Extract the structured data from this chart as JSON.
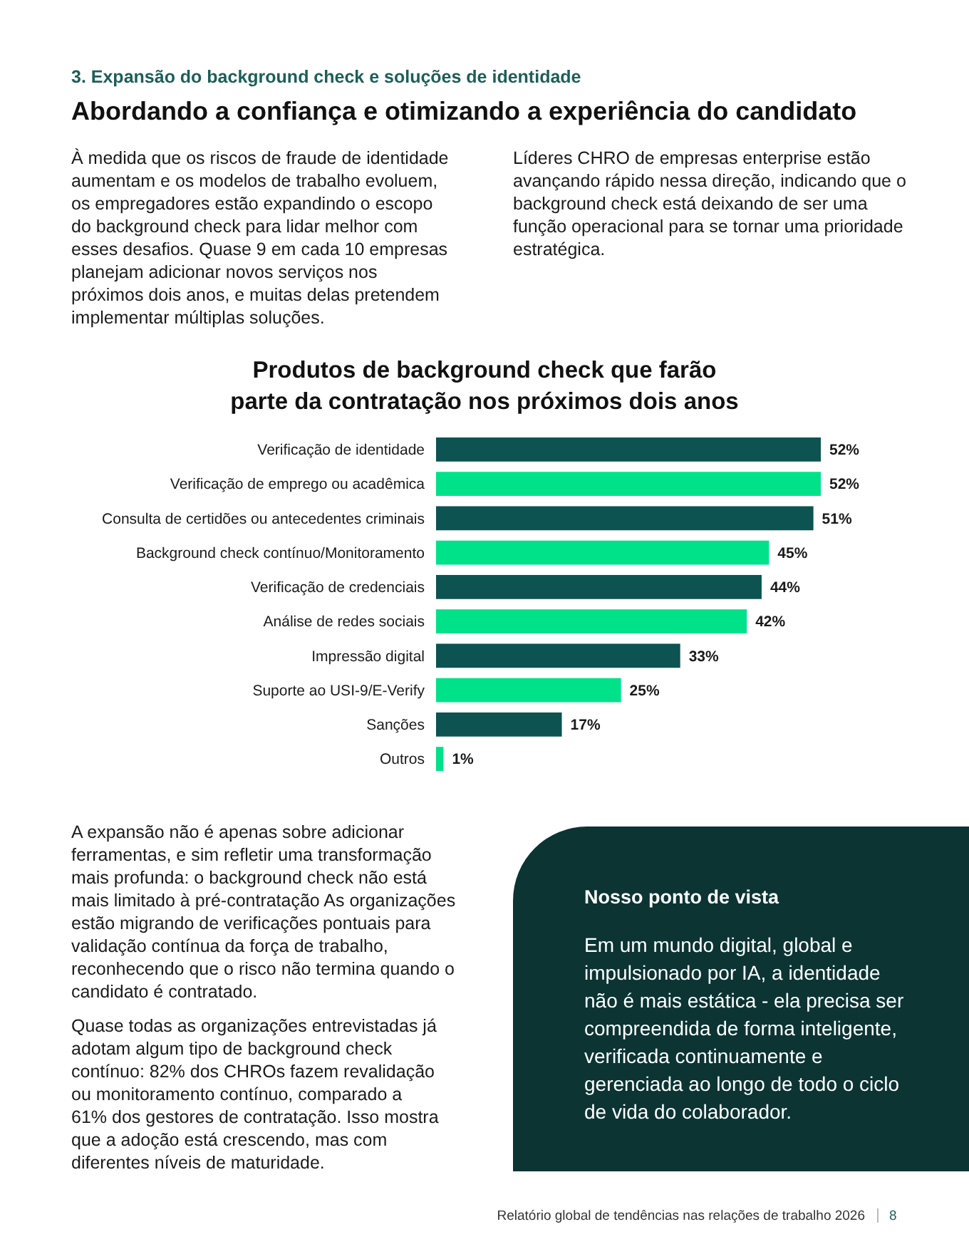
{
  "chart_data": {
    "type": "bar",
    "orientation": "horizontal",
    "title": "Produtos de background check que farão parte da contratação nos próximos dois anos",
    "categories": [
      "Verificação de identidade",
      "Verificação de emprego ou acadêmica",
      "Consulta de certidões ou antecedentes criminais",
      "Background check contínuo/Monitoramento",
      "Verificação de credenciais",
      "Análise de redes sociais",
      "Impressão digital",
      "Suporte ao USI-9/E-Verify",
      "Sanções",
      "Outros"
    ],
    "values": [
      52,
      52,
      51,
      45,
      44,
      42,
      33,
      25,
      17,
      1
    ],
    "colors": [
      "#0c5352",
      "#00e28a",
      "#0c5352",
      "#00e28a",
      "#0c5352",
      "#00e28a",
      "#0c5352",
      "#00e28a",
      "#0c5352",
      "#00e28a"
    ],
    "value_labels": [
      "52%",
      "52%",
      "51%",
      "45%",
      "44%",
      "42%",
      "33%",
      "25%",
      "17%",
      "1%"
    ],
    "annotations": [
      "3. Expansão do background check e soluções de identidade",
      "Abordando a confiança e otimizando a experiência do candidato",
      "À medida que os riscos de fraude de identidade aumentam e os modelos de trabalho evoluem, os empregadores estão expandindo o escopo do background check para lidar melhor com esses desafios. Quase 9 em cada 10 empresas planejam adicionar novos serviços nos próximos dois anos, e muitas delas pretendem implementar múltiplas soluções.",
      "Líderes CHRO de empresas enterprise estão avançando rápido nessa direção, indicando que o background check está deixando de ser uma função operacional para se tornar uma prioridade estratégica.",
      "A expansão não é apenas sobre adicionar ferramentas, e sim refletir uma transformação mais profunda: o background check não está mais limitado à pré-contratação As organizações estão migrando de verificações pontuais para validação contínua da força de trabalho, reconhecendo que o risco não termina quando o candidato é contratado.",
      "Quase todas as organizações entrevistadas já adotam algum tipo de background check contínuo: 82% dos CHROs fazem revalidação ou monitoramento contínuo, comparado a 61% dos gestores de contratação. Isso mostra que a adoção está crescendo, mas com diferentes níveis de maturidade.",
      "Nosso ponto de vista",
      "Em um mundo digital, global e impulsionado por IA, a identidade não é mais estática - ela precisa ser compreendida de forma inteligente, verificada continuamente e gerenciada ao longo de todo o ciclo de vida do colaborador.",
      "Relatório global de tendências nas relações de trabalho 2026",
      "8"
    ]
  }
}
